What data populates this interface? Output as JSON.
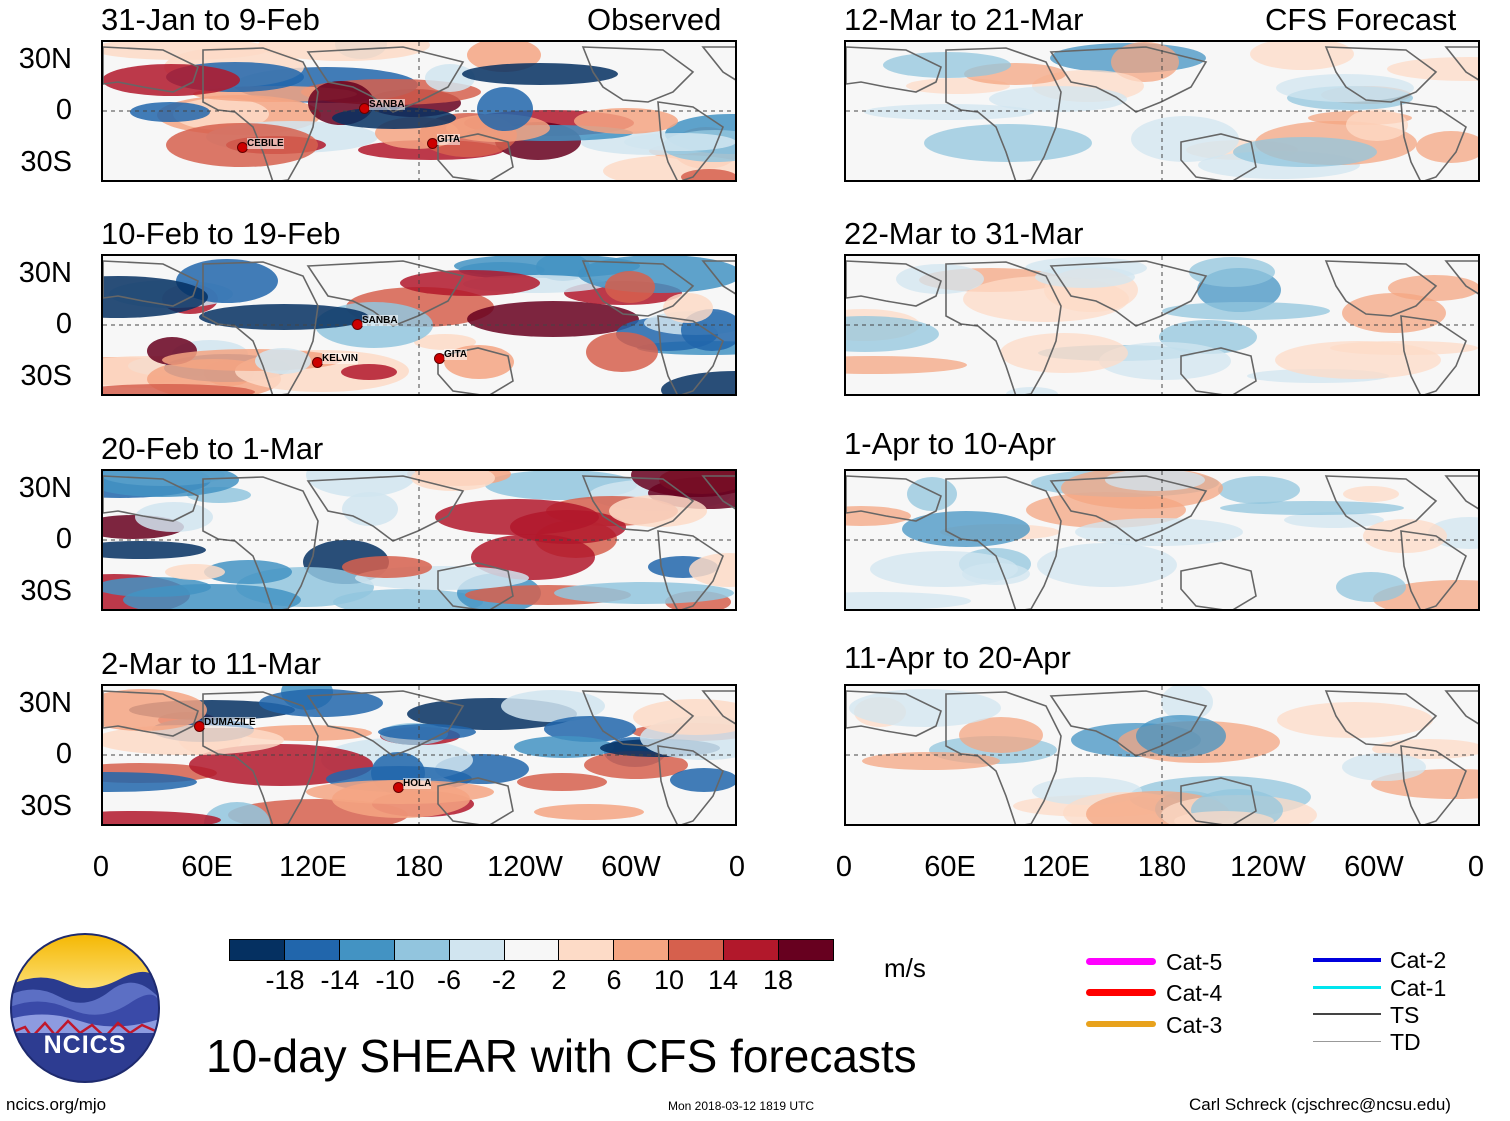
{
  "figure": {
    "main_title": "10-day SHEAR with CFS forecasts",
    "units": "m/s",
    "website": "ncics.org/mjo",
    "timestamp": "Mon 2018-03-12 1819 UTC",
    "credit": "Carl Schreck (cjschrec@ncsu.edu)",
    "logo_text": "NCICS"
  },
  "columns": {
    "observed_label": "Observed",
    "forecast_label": "CFS Forecast"
  },
  "axes": {
    "y_labels": [
      "30N",
      "0",
      "30S"
    ],
    "x_labels": [
      "0",
      "60E",
      "120E",
      "180",
      "120W",
      "60W",
      "0"
    ]
  },
  "panels": {
    "observed": [
      {
        "period": "31-Jan to 9-Feb",
        "storms": [
          "CEBILE",
          "SANBA",
          "GITA"
        ]
      },
      {
        "period": "10-Feb to 19-Feb",
        "storms": [
          "SANBA",
          "KELVIN",
          "GITA"
        ]
      },
      {
        "period": "20-Feb to 1-Mar",
        "storms": []
      },
      {
        "period": "2-Mar to 11-Mar",
        "storms": [
          "DUMAZILE",
          "HOLA"
        ]
      }
    ],
    "forecast": [
      {
        "period": "12-Mar to 21-Mar"
      },
      {
        "period": "22-Mar to 31-Mar"
      },
      {
        "period": "1-Apr to 10-Apr"
      },
      {
        "period": "11-Apr to 20-Apr"
      }
    ]
  },
  "colorbar": {
    "labels": [
      "-18",
      "-14",
      "-10",
      "-6",
      "-2",
      "2",
      "6",
      "10",
      "14",
      "18"
    ],
    "colors": [
      "#053061",
      "#2166ac",
      "#4393c3",
      "#92c5de",
      "#d1e5f0",
      "#f7f7f7",
      "#fddbc7",
      "#f4a582",
      "#d6604d",
      "#b2182b",
      "#67001f"
    ]
  },
  "legend": {
    "items": [
      {
        "label": "Cat-5",
        "color": "#ff00ff"
      },
      {
        "label": "Cat-4",
        "color": "#ff0000"
      },
      {
        "label": "Cat-3",
        "color": "#e8a21c"
      },
      {
        "label": "Cat-2",
        "color": "#0000dd"
      },
      {
        "label": "Cat-1",
        "color": "#00e5ee"
      },
      {
        "label": "TS",
        "color": "#444444"
      },
      {
        "label": "TD",
        "color": "#999999"
      }
    ]
  }
}
